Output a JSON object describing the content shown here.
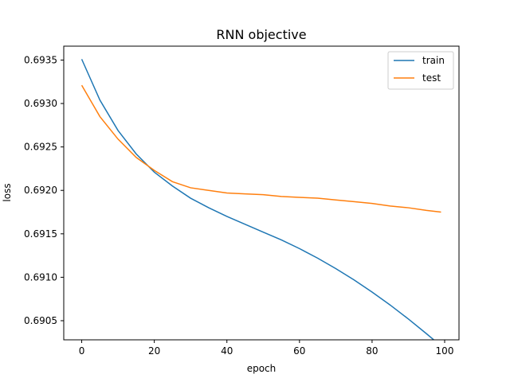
{
  "chart_data": {
    "type": "line",
    "title": "RNN objective",
    "xlabel": "epoch",
    "ylabel": "loss",
    "xlim": [
      -4.95,
      103.95
    ],
    "ylim": [
      0.69028,
      0.69366
    ],
    "xticks": [
      0,
      20,
      40,
      60,
      80,
      100
    ],
    "xtick_labels": [
      "0",
      "20",
      "40",
      "60",
      "80",
      "100"
    ],
    "yticks": [
      0.6905,
      0.691,
      0.6915,
      0.692,
      0.6925,
      0.693,
      0.6935
    ],
    "ytick_labels": [
      "0.6905",
      "0.6910",
      "0.6915",
      "0.6920",
      "0.6925",
      "0.6930",
      "0.6935"
    ],
    "grid": false,
    "legend_position": "upper right",
    "series": [
      {
        "name": "train",
        "color": "#1f77b4",
        "x": [
          0,
          5,
          10,
          15,
          20,
          25,
          30,
          35,
          40,
          45,
          50,
          55,
          60,
          65,
          70,
          75,
          80,
          85,
          90,
          95,
          99
        ],
        "y": [
          0.69351,
          0.69304,
          0.69269,
          0.69242,
          0.69221,
          0.69205,
          0.69191,
          0.6918,
          0.6917,
          0.69161,
          0.69152,
          0.69143,
          0.69133,
          0.69122,
          0.6911,
          0.69097,
          0.69083,
          0.69068,
          0.69052,
          0.69035,
          0.69021
        ]
      },
      {
        "name": "test",
        "color": "#ff7f0e",
        "x": [
          0,
          5,
          10,
          15,
          20,
          25,
          30,
          35,
          40,
          45,
          50,
          55,
          60,
          65,
          70,
          75,
          80,
          85,
          90,
          95,
          99
        ],
        "y": [
          0.69321,
          0.69285,
          0.69259,
          0.69238,
          0.69223,
          0.6921,
          0.69203,
          0.692,
          0.69197,
          0.69196,
          0.69195,
          0.69193,
          0.69192,
          0.69191,
          0.69189,
          0.69187,
          0.69185,
          0.69182,
          0.6918,
          0.69177,
          0.69175
        ]
      }
    ]
  }
}
